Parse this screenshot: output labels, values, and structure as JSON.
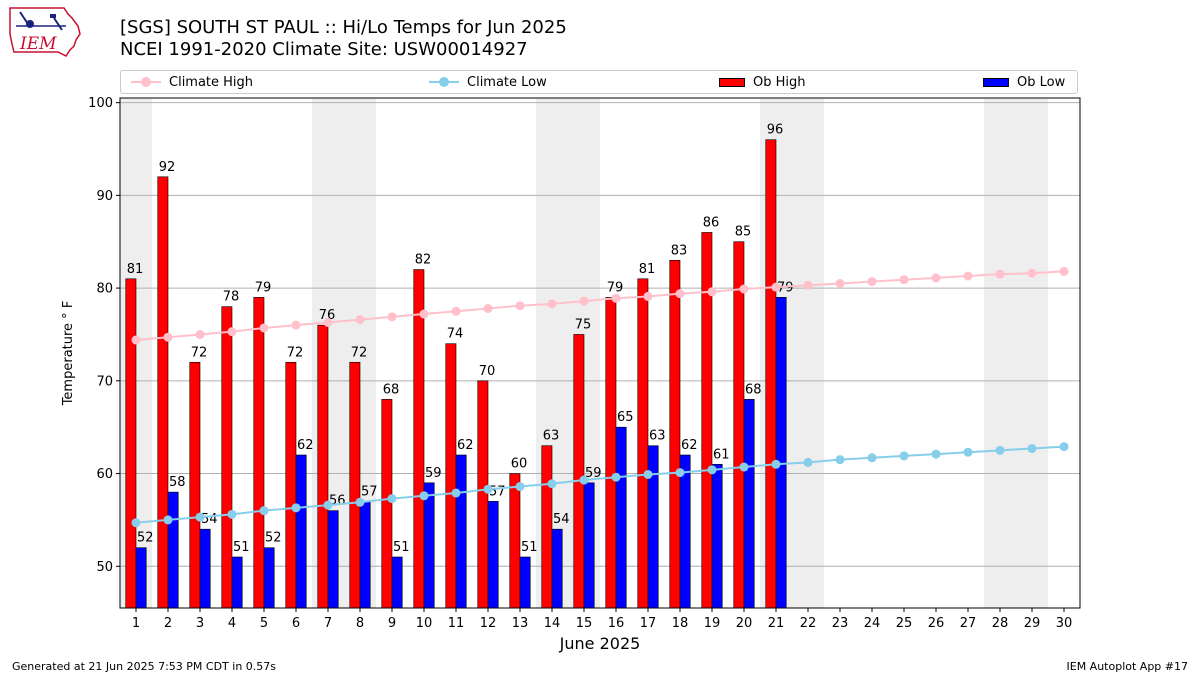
{
  "header": {
    "title_line1": "[SGS] SOUTH ST PAUL :: Hi/Lo Temps for Jun 2025",
    "title_line2": "NCEI 1991-2020 Climate Site: USW00014927",
    "logo_text": "IEM"
  },
  "legend": {
    "climate_high": "Climate High",
    "climate_low": "Climate Low",
    "ob_high": "Ob High",
    "ob_low": "Ob Low"
  },
  "colors": {
    "climate_high": "#ffc0cb",
    "climate_low": "#87ceeb",
    "ob_high": "#ff0000",
    "ob_low": "#0000ff",
    "weekend_shade": "#eeeeee",
    "grid": "#b0b0b0"
  },
  "chart_data": {
    "type": "bar",
    "xlabel": "June 2025",
    "ylabel": "Temperature ° F",
    "ylim": [
      45.5,
      100.5
    ],
    "yticks": [
      50,
      60,
      70,
      80,
      90,
      100
    ],
    "grid": true,
    "legend_position": "top",
    "days": [
      1,
      2,
      3,
      4,
      5,
      6,
      7,
      8,
      9,
      10,
      11,
      12,
      13,
      14,
      15,
      16,
      17,
      18,
      19,
      20,
      21,
      22,
      23,
      24,
      25,
      26,
      27,
      28,
      29,
      30
    ],
    "weekend_shading": [
      [
        1,
        1
      ],
      [
        7,
        8
      ],
      [
        14,
        15
      ],
      [
        21,
        22
      ],
      [
        28,
        29
      ]
    ],
    "series": [
      {
        "name": "Ob High",
        "kind": "bar",
        "values": [
          81,
          92,
          72,
          78,
          79,
          72,
          76,
          72,
          68,
          82,
          74,
          70,
          60,
          63,
          75,
          79,
          81,
          83,
          86,
          85,
          96
        ],
        "labels": [
          "81",
          "92",
          "72",
          "78",
          "79",
          "72",
          "76",
          "72",
          "68",
          "82",
          "74",
          "70",
          "60",
          "63",
          "75",
          "79",
          "81",
          "83",
          "86",
          "85",
          "96"
        ]
      },
      {
        "name": "Ob Low",
        "kind": "bar",
        "values": [
          52,
          58,
          54,
          51,
          52,
          62,
          56,
          57,
          51,
          59,
          62,
          57,
          51,
          54,
          59,
          65,
          63,
          62,
          61,
          68,
          79
        ],
        "labels": [
          "52",
          "58",
          "54",
          "51",
          "52",
          "62",
          "56",
          "57",
          "51",
          "59",
          "62",
          "57",
          "51",
          "54",
          "59",
          "65",
          "63",
          "62",
          "61",
          "68",
          "79"
        ]
      },
      {
        "name": "Climate High",
        "kind": "line",
        "values": [
          74.4,
          74.7,
          75.0,
          75.3,
          75.7,
          76.0,
          76.3,
          76.6,
          76.9,
          77.2,
          77.5,
          77.8,
          78.1,
          78.3,
          78.6,
          78.9,
          79.1,
          79.4,
          79.6,
          79.9,
          80.1,
          80.3,
          80.5,
          80.7,
          80.9,
          81.1,
          81.3,
          81.5,
          81.6,
          81.8
        ]
      },
      {
        "name": "Climate Low",
        "kind": "line",
        "values": [
          54.7,
          55.0,
          55.3,
          55.6,
          56.0,
          56.3,
          56.6,
          56.9,
          57.3,
          57.6,
          57.9,
          58.3,
          58.6,
          58.9,
          59.3,
          59.6,
          59.9,
          60.1,
          60.4,
          60.7,
          61.0,
          61.2,
          61.5,
          61.7,
          61.9,
          62.1,
          62.3,
          62.5,
          62.7,
          62.9
        ]
      }
    ]
  },
  "footer": {
    "left": "Generated at 21 Jun 2025 7:53 PM CDT in 0.57s",
    "right": "IEM Autoplot App #17"
  }
}
